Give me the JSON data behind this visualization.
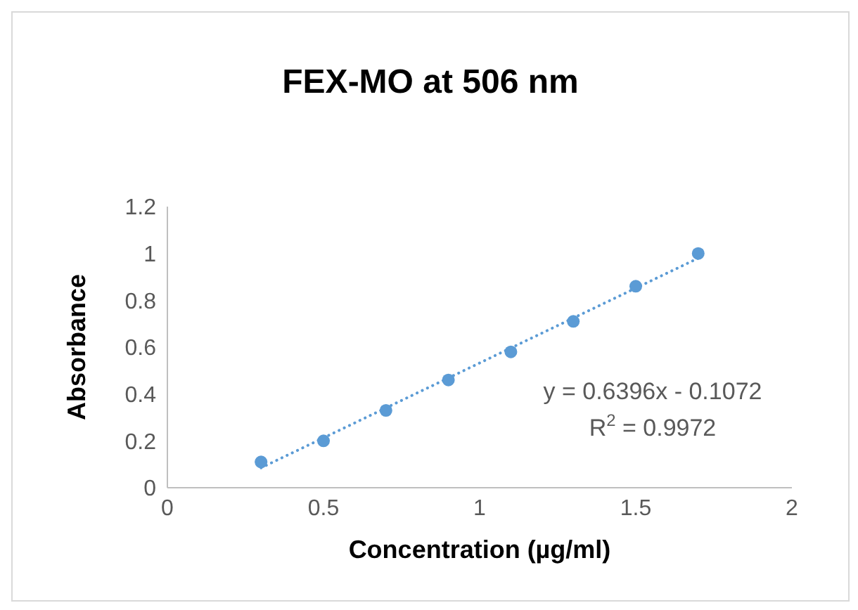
{
  "chart_data": {
    "type": "scatter",
    "title": "FEX-MO at 506 nm",
    "xlabel": "Concentration (µg/ml)",
    "ylabel": "Absorbance",
    "x": [
      0.3,
      0.5,
      0.7,
      0.9,
      1.1,
      1.3,
      1.5,
      1.7
    ],
    "series": [
      {
        "color": "#5b9bd5",
        "values": [
          0.11,
          0.2,
          0.33,
          0.46,
          0.58,
          0.71,
          0.86,
          1.0
        ],
        "marker": "circle"
      },
      {
        "type": "line",
        "color": "#5b9bd5",
        "x": [
          0.3,
          1.7
        ],
        "values": [
          0.085,
          0.98
        ],
        "line_style": "dotted",
        "marker": "none"
      }
    ],
    "xlim": [
      0,
      2
    ],
    "xticks": [
      0,
      0.5,
      1,
      1.5,
      2
    ],
    "ylim": [
      0,
      1.2
    ],
    "yticks": [
      0,
      0.2,
      0.4,
      0.6,
      0.8,
      1,
      1.2
    ],
    "annotations": [
      "y = 0.6396x - 0.1072",
      "R$^{2}$ = 0.9972"
    ]
  }
}
